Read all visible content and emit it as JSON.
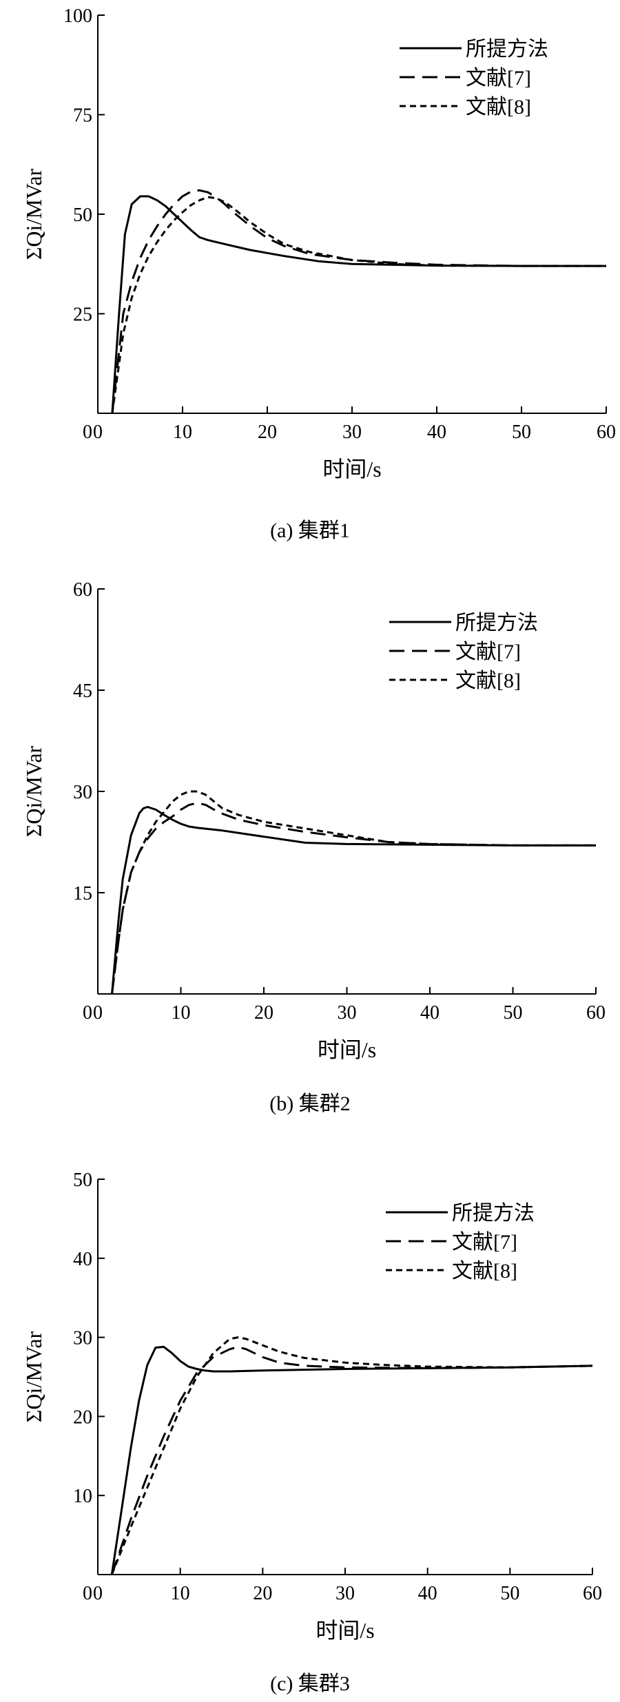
{
  "figure": {
    "panels": [
      {
        "caption": "(a) 集群1"
      },
      {
        "caption": "(b) 集群2"
      },
      {
        "caption": "(c) 集群3"
      }
    ]
  },
  "chart_data": [
    {
      "type": "line",
      "caption": "(a) 集群1",
      "xlabel": "时间/s",
      "ylabel": "ΣQi/MVar",
      "xlim": [
        0,
        60
      ],
      "ylim": [
        0,
        100
      ],
      "xticks": [
        0,
        10,
        20,
        30,
        40,
        50,
        60
      ],
      "yticks": [
        25,
        50,
        75,
        100
      ],
      "legend_position": "top-right",
      "grid": false,
      "series": [
        {
          "name": "所提方法",
          "style": "solid",
          "x": [
            1.7,
            2.5,
            3.2,
            4,
            5,
            6,
            7,
            8,
            9,
            10,
            11,
            12,
            13,
            15,
            18,
            22,
            26,
            30,
            40,
            50,
            60
          ],
          "y": [
            0,
            25,
            45,
            52.5,
            54.5,
            54.5,
            53.5,
            52,
            50,
            48,
            46,
            44.2,
            43.5,
            42.5,
            41,
            39.5,
            38.2,
            37.5,
            37.1,
            37,
            37
          ]
        },
        {
          "name": "文献[7]",
          "style": "dashed",
          "x": [
            1.7,
            3,
            4,
            5,
            6,
            7,
            8,
            9,
            10,
            11,
            12,
            13,
            14,
            15,
            16,
            18,
            20,
            22,
            25,
            30,
            35,
            40,
            50,
            60
          ],
          "y": [
            0,
            25,
            33,
            39,
            43.5,
            47,
            50,
            52.5,
            54.5,
            55.7,
            56,
            55.5,
            54.2,
            52.5,
            50.5,
            47,
            44,
            42,
            40,
            38.5,
            37.8,
            37.3,
            37,
            37
          ]
        },
        {
          "name": "文献[8]",
          "style": "dotted",
          "x": [
            1.7,
            3,
            4,
            5,
            6,
            7,
            8,
            9,
            10,
            11,
            12,
            13,
            14,
            15,
            16,
            18,
            20,
            22,
            25,
            30,
            35,
            40,
            50,
            60
          ],
          "y": [
            0,
            20,
            29,
            35,
            39.5,
            43,
            46,
            48.5,
            50.5,
            52.3,
            53.5,
            54.3,
            54,
            53,
            51.5,
            48,
            45,
            42.5,
            40.5,
            38.5,
            37.5,
            37.1,
            37,
            37
          ]
        }
      ]
    },
    {
      "type": "line",
      "caption": "(b) 集群2",
      "xlabel": "时间/s",
      "ylabel": "ΣQi/MVar",
      "xlim": [
        0,
        60
      ],
      "ylim": [
        0,
        60
      ],
      "xticks": [
        0,
        10,
        20,
        30,
        40,
        50,
        60
      ],
      "yticks": [
        15,
        30,
        45,
        60
      ],
      "legend_position": "top-right",
      "grid": false,
      "series": [
        {
          "name": "所提方法",
          "style": "solid",
          "x": [
            1.7,
            2.5,
            3,
            4,
            5,
            5.5,
            6,
            7,
            8,
            9,
            10,
            11,
            12,
            15,
            20,
            25,
            30,
            40,
            50,
            60
          ],
          "y": [
            0,
            11,
            17,
            23.5,
            26.8,
            27.5,
            27.7,
            27.3,
            26.5,
            25.8,
            25.2,
            24.8,
            24.6,
            24.2,
            23.3,
            22.4,
            22.2,
            22.1,
            22,
            22
          ]
        },
        {
          "name": "文献[7]",
          "style": "dashed",
          "x": [
            1.7,
            2.5,
            3,
            4,
            5,
            6,
            7,
            8,
            9,
            10,
            11,
            12,
            13,
            14,
            15,
            17,
            20,
            25,
            30,
            35,
            40,
            50,
            60
          ],
          "y": [
            0,
            8,
            12.5,
            18,
            21,
            23,
            24.5,
            25.5,
            26.3,
            27.3,
            28,
            28.3,
            28,
            27.3,
            26.7,
            25.8,
            25,
            24,
            23.2,
            22.5,
            22.2,
            22,
            22
          ]
        },
        {
          "name": "文献[8]",
          "style": "dotted",
          "x": [
            1.7,
            2.5,
            3,
            4,
            5,
            6,
            7,
            8,
            9,
            10,
            11,
            12,
            13,
            14,
            15,
            17,
            20,
            25,
            30,
            35,
            40,
            50,
            60
          ],
          "y": [
            0,
            8,
            12.5,
            18,
            21,
            23.5,
            25.5,
            27,
            28.5,
            29.5,
            30,
            30,
            29.5,
            28.5,
            27.5,
            26.5,
            25.5,
            24.5,
            23.5,
            22.5,
            22.2,
            22,
            22
          ]
        }
      ]
    },
    {
      "type": "line",
      "caption": "(c) 集群3",
      "xlabel": "时间/s",
      "ylabel": "ΣQi/MVar",
      "xlim": [
        0,
        60
      ],
      "ylim": [
        0,
        50
      ],
      "xticks": [
        0,
        10,
        20,
        30,
        40,
        50,
        60
      ],
      "yticks": [
        10,
        20,
        30,
        40,
        50
      ],
      "legend_position": "top-right",
      "grid": false,
      "series": [
        {
          "name": "所提方法",
          "style": "solid",
          "x": [
            1.7,
            3,
            4,
            5,
            6,
            7,
            8,
            9,
            10,
            11,
            12,
            13,
            14,
            16,
            20,
            30,
            40,
            50,
            60
          ],
          "y": [
            0,
            9,
            16,
            22,
            26.5,
            28.7,
            28.8,
            28,
            27,
            26.3,
            26,
            25.8,
            25.7,
            25.7,
            25.8,
            26,
            26.1,
            26.2,
            26.4
          ]
        },
        {
          "name": "文献[7]",
          "style": "dashed",
          "x": [
            1.7,
            4,
            6,
            8,
            10,
            12,
            14,
            16,
            17,
            18,
            20,
            22,
            25,
            30,
            40,
            50,
            60
          ],
          "y": [
            0,
            7,
            12.5,
            17.5,
            22,
            25.5,
            27.5,
            28.5,
            28.8,
            28.5,
            27.5,
            26.8,
            26.4,
            26.2,
            26.1,
            26.2,
            26.4
          ]
        },
        {
          "name": "文献[8]",
          "style": "dotted",
          "x": [
            1.7,
            4,
            6,
            8,
            10,
            12,
            14,
            16,
            17,
            18,
            20,
            22,
            25,
            30,
            35,
            40,
            50,
            60
          ],
          "y": [
            0,
            6,
            11,
            16,
            21,
            25,
            28,
            29.8,
            30,
            29.8,
            29,
            28.2,
            27.4,
            26.8,
            26.5,
            26.3,
            26.2,
            26.4
          ]
        }
      ]
    }
  ]
}
